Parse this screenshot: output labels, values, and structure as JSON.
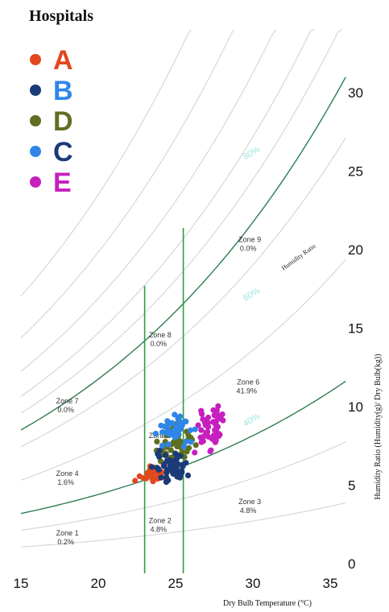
{
  "chart_data": {
    "type": "scatter",
    "title": "Hospitals",
    "xlabel": "Dry Bulb Temperature (°C)",
    "ylabel": "Humidity Ratio (Humidity(g)/ Dry Bulb(kg))",
    "curve_label": "Humidity Ratio",
    "xlim": [
      15,
      35
    ],
    "ylim": [
      0,
      30
    ],
    "x_ticks": [
      "15",
      "20",
      "25",
      "30",
      "35"
    ],
    "y_ticks": [
      "0",
      "5",
      "10",
      "15",
      "20",
      "25",
      "30"
    ],
    "comfort_lines_x": [
      23,
      25.5
    ],
    "rh_percent_labels": [
      {
        "text": "80%",
        "x": 30,
        "y": 26
      },
      {
        "text": "60%",
        "x": 30,
        "y": 17
      },
      {
        "text": "40%",
        "x": 30,
        "y": 9
      }
    ],
    "zones": [
      {
        "name": "Zone 1",
        "value": "0.2%",
        "x": 18,
        "y": 1.8
      },
      {
        "name": "Zone 2",
        "value": "4.8%",
        "x": 24.0,
        "y": 2.6
      },
      {
        "name": "Zone 3",
        "value": "4.8%",
        "x": 29.8,
        "y": 3.8
      },
      {
        "name": "Zone 4",
        "value": "1.6%",
        "x": 18,
        "y": 5.6
      },
      {
        "name": "Zone 5",
        "value": "",
        "x": 24.0,
        "y": 8.0
      },
      {
        "name": "Zone 6",
        "value": "41.9%",
        "x": 29.7,
        "y": 11.4
      },
      {
        "name": "Zone 7",
        "value": "0.0%",
        "x": 18,
        "y": 10.2
      },
      {
        "name": "Zone 8",
        "value": "0.0%",
        "x": 24.0,
        "y": 14.4
      },
      {
        "name": "Zone 9",
        "value": "0.0%",
        "x": 29.8,
        "y": 20.5
      }
    ],
    "legend_placement": "top-left",
    "series": [
      {
        "name": "A",
        "color": "#e2481d",
        "label_color": "#e2481d"
      },
      {
        "name": "B",
        "color": "#1a3a78",
        "label_color": "#2f86e8"
      },
      {
        "name": "D",
        "color": "#5e6f22",
        "label_color": "#5e6f22"
      },
      {
        "name": "C",
        "color": "#2f86e8",
        "label_color": "#1a3a78"
      },
      {
        "name": "E",
        "color": "#c71fbf",
        "label_color": "#c71fbf"
      }
    ]
  }
}
